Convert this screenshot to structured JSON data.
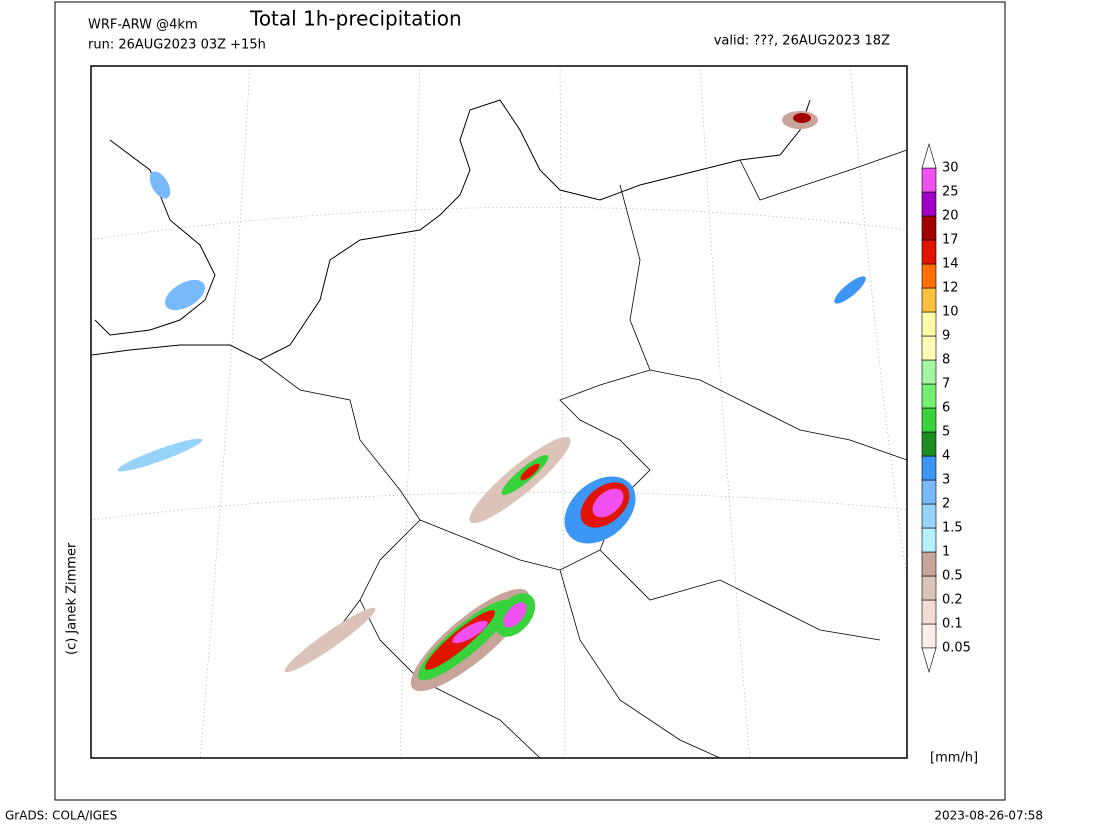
{
  "header": {
    "model": "WRF-ARW @4km",
    "title": "Total 1h-precipitation",
    "run": "run: 26AUG2023 03Z +15h",
    "valid": "valid: ???, 26AUG2023 18Z"
  },
  "credit": "(c) Janek Zimmer",
  "legend": {
    "unit": "[mm/h]",
    "levels": [
      0.05,
      0.1,
      0.2,
      0.5,
      1,
      1.5,
      2,
      3,
      4,
      5,
      6,
      7,
      8,
      9,
      10,
      12,
      14,
      17,
      20,
      25,
      30
    ],
    "colors": [
      "#fbeee6",
      "#f0dcd2",
      "#dcc3b9",
      "#c8a59b",
      "#b4f0fa",
      "#96d2fa",
      "#78b9fa",
      "#3c96f5",
      "#1e8c1e",
      "#37d23c",
      "#73f073",
      "#a5f5a0",
      "#fffab4",
      "#fffaaa",
      "#ffc03c",
      "#ff6e00",
      "#e11400",
      "#a50000",
      "#a000c8",
      "#f050f0"
    ]
  },
  "footer": {
    "software": "GrADS: COLA/IGES",
    "timestamp": "2023-08-26-07:58"
  }
}
